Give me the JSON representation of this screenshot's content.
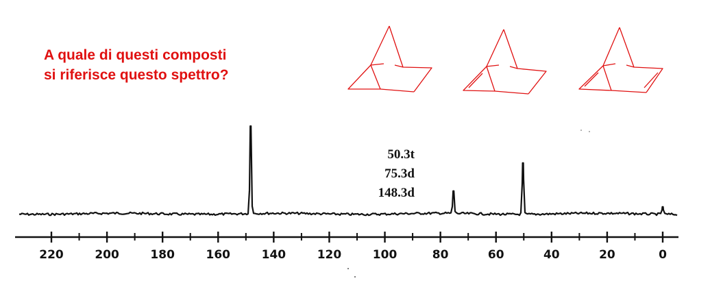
{
  "question": {
    "line1": "A quale di questi composti",
    "line2": "si riferisce questo spettro?"
  },
  "colors": {
    "question": "#e01010",
    "structures": "#e01010",
    "spectrum": "#111111"
  },
  "structures": [
    {
      "name": "norbornane",
      "double_bonds": 0
    },
    {
      "name": "norbornene",
      "double_bonds": 1
    },
    {
      "name": "norbornadiene",
      "double_bonds": 2
    }
  ],
  "chart_data": {
    "type": "line",
    "title": "",
    "xlabel": "",
    "ylabel": "",
    "xlim": [
      230,
      -5
    ],
    "x_reversed": true,
    "ticks": [
      220,
      200,
      180,
      160,
      140,
      120,
      100,
      80,
      60,
      40,
      20,
      0
    ],
    "tick_labels": [
      "220",
      "200",
      "180",
      "160",
      "140",
      "120",
      "100",
      "80",
      "60",
      "40",
      "20",
      "0"
    ],
    "peaks": [
      {
        "ppm": 148.3,
        "intensity": 1.0
      },
      {
        "ppm": 75.3,
        "intensity": 0.26
      },
      {
        "ppm": 50.3,
        "intensity": 0.58
      },
      {
        "ppm": 0.0,
        "intensity": 0.08
      }
    ],
    "peak_labels": [
      "50.3t",
      "75.3d",
      "148.3d"
    ]
  }
}
